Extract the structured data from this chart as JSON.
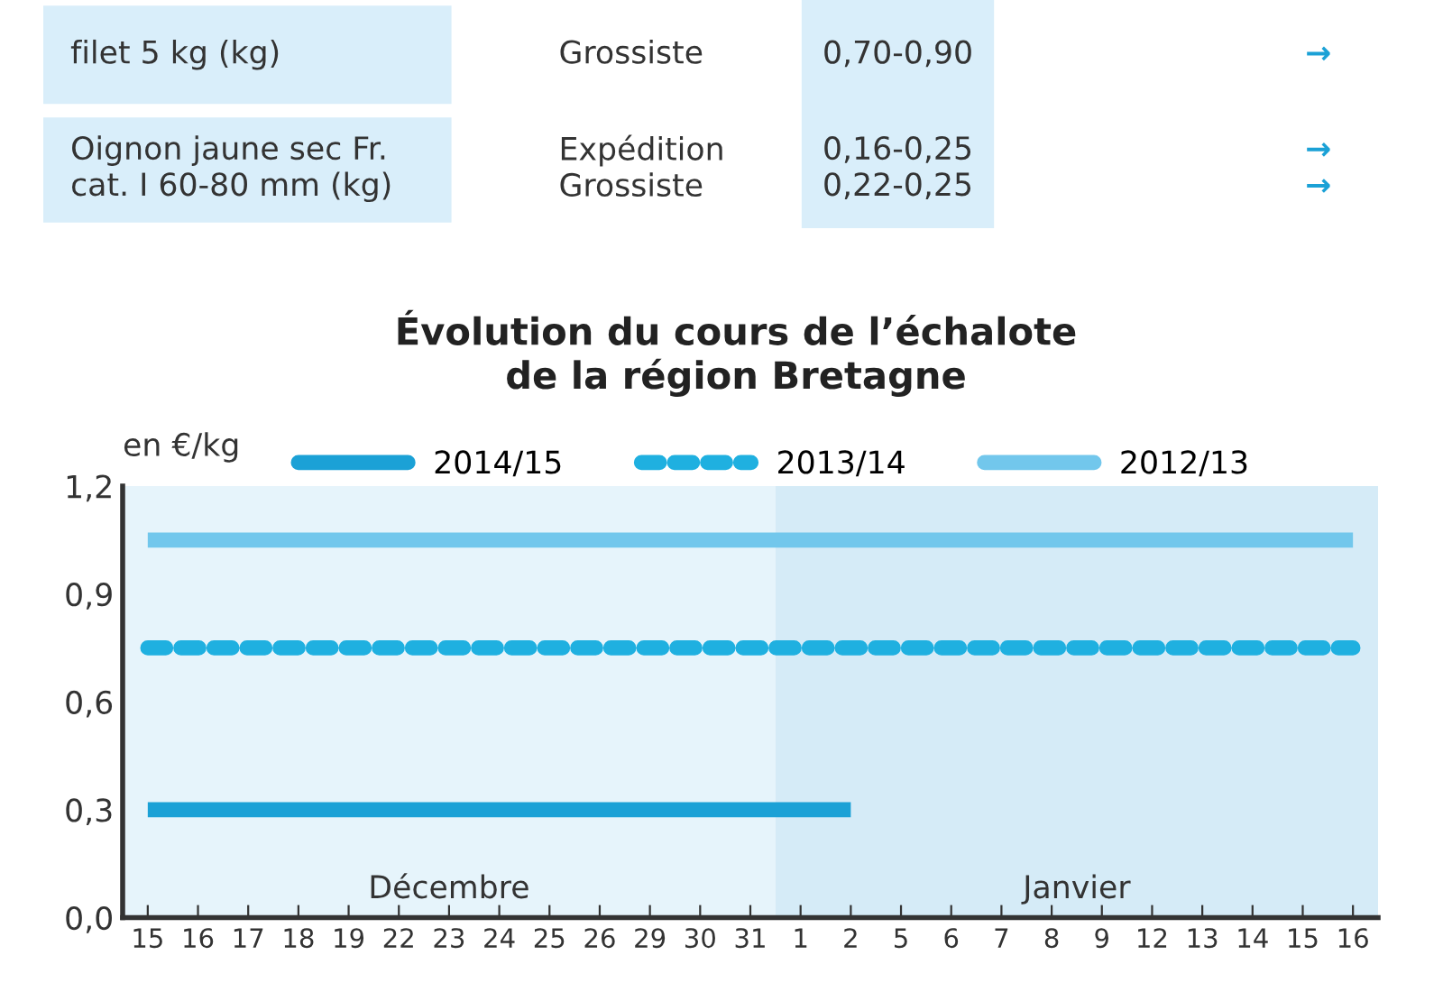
{
  "chart_data": [
    {
      "type": "other",
      "annotations": [
        "filet 5 kg (kg)",
        "Grossiste",
        "0,70-0,90",
        "→",
        "Oignon jaune sec Fr.\ncat. I 60-80 mm (kg)",
        "Expédition\nGrossiste",
        "0,16-0,25\n0,22-0,25",
        "→\n→"
      ]
    },
    {
      "type": "line",
      "title": "Évolution du cours de l’échalote\nde la région Bretagne",
      "ylabel": "en €/kg",
      "categories": [
        "15",
        "16",
        "17",
        "18",
        "19",
        "22",
        "23",
        "24",
        "25",
        "26",
        "29",
        "30",
        "31",
        "1",
        "2",
        "5",
        "6",
        "7",
        "8",
        "9",
        "12",
        "13",
        "14",
        "15",
        "16"
      ],
      "ylim": [
        0,
        1.2
      ],
      "yticks": [
        {
          "value": 0,
          "label": "0,0"
        },
        {
          "value": 0.3,
          "label": "0,3"
        },
        {
          "value": 0.6,
          "label": "0,6"
        },
        {
          "value": 0.9,
          "label": "0,9"
        },
        {
          "value": 1.2,
          "label": "1,2"
        }
      ],
      "annotations": [
        "Décembre",
        "Janvier"
      ],
      "legend": "top left",
      "grid": false,
      "marker": "none",
      "series": [
        {
          "name": "2014/15",
          "color": "#1ba1d6",
          "line_style": "solid",
          "values": [
            0.3,
            0.3,
            0.3,
            0.3,
            0.3,
            0.3,
            0.3,
            0.3,
            0.3,
            0.3,
            0.3,
            0.3,
            0.3,
            0.3,
            0.3,
            null,
            null,
            null,
            null,
            null,
            null,
            null,
            null,
            null,
            null
          ]
        },
        {
          "name": "2013/14",
          "color": "#1fb0e0",
          "line_style": "dashed",
          "values": [
            0.75,
            0.75,
            0.75,
            0.75,
            0.75,
            0.75,
            0.75,
            0.75,
            0.75,
            0.75,
            0.75,
            0.75,
            0.75,
            0.75,
            0.75,
            0.75,
            0.75,
            0.75,
            0.75,
            0.75,
            0.75,
            0.75,
            0.75,
            0.75,
            0.75
          ]
        },
        {
          "name": "2012/13",
          "color": "#72c7ec",
          "line_style": "solid",
          "values": [
            1.05,
            1.05,
            1.05,
            1.05,
            1.05,
            1.05,
            1.05,
            1.05,
            1.05,
            1.05,
            1.05,
            1.05,
            1.05,
            1.05,
            1.05,
            1.05,
            1.05,
            1.05,
            1.05,
            1.05,
            1.05,
            1.05,
            1.05,
            1.05,
            1.05
          ]
        }
      ]
    }
  ]
}
